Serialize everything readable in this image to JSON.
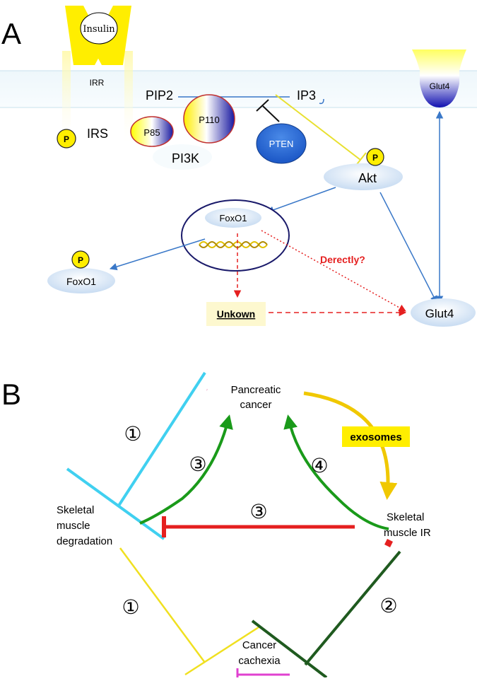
{
  "panel_a": {
    "label": "A",
    "insulin": "Insulin",
    "irr": "IRR",
    "pip2": "PIP2",
    "pip3": "IP3",
    "irs": "IRS",
    "p85": "P85",
    "p110": "P110",
    "pi3k": "PI3K",
    "pten": "PTEN",
    "akt": "Akt",
    "glut4_membrane": "Glut4",
    "foxo1_nucleus": "FoxO1",
    "foxo1_phospho": "FoxO1",
    "derectly": "Derectly?",
    "unkown": "Unkown",
    "glut4_bottom": "Glut4",
    "phospho_symbol": "P"
  },
  "panel_b": {
    "label": "B",
    "pancreatic_cancer": [
      "Pancreatic",
      "cancer"
    ],
    "exosomes": "exosomes",
    "skeletal_degradation": [
      "Skeletal",
      "muscle",
      "degradation"
    ],
    "skeletal_ir": [
      "Skeletal",
      "muscle IR"
    ],
    "cancer_cachexia": [
      "Cancer",
      "cachexia"
    ],
    "num_1_top": "①",
    "num_3_left": "③",
    "num_4": "④",
    "num_3_mid": "③",
    "num_1_bottom": "①",
    "num_2": "②"
  },
  "colors": {
    "yellow": "#ffee00",
    "blue_arrow": "#3a78c8",
    "red": "#e52020",
    "green": "#1a9a1a",
    "dark_green": "#1f5a1f",
    "cyan": "#40d0f0",
    "navy": "#1a1a9a",
    "magenta": "#e040d0"
  }
}
